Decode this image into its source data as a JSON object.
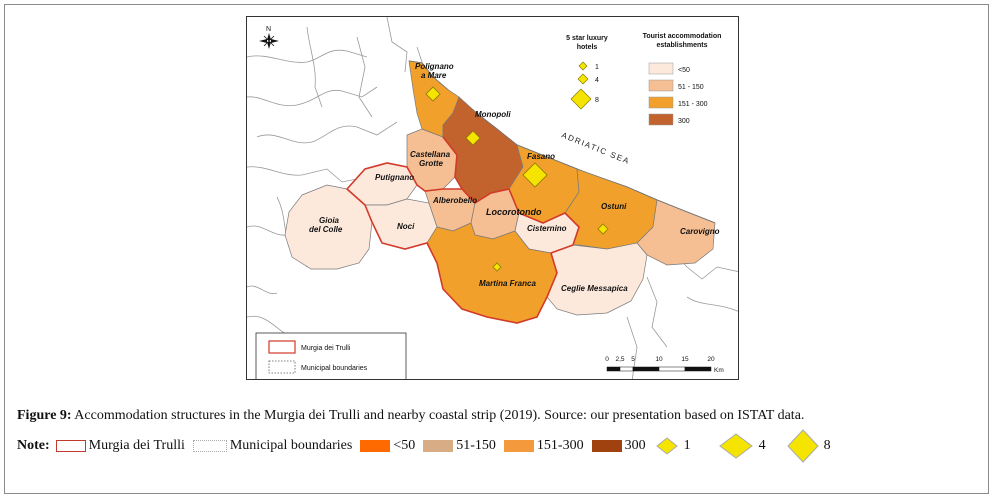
{
  "map": {
    "north_label": "N",
    "sea_label": "ADRIATIC SEA",
    "places": [
      {
        "name": "Polignano\na Mare"
      },
      {
        "name": "Monopoli"
      },
      {
        "name": "Castellana\nGrotte"
      },
      {
        "name": "Fasano"
      },
      {
        "name": "Putignano"
      },
      {
        "name": "Alberobello"
      },
      {
        "name": "Locorotondo"
      },
      {
        "name": "Ostuni"
      },
      {
        "name": "Gioia\ndel Colle"
      },
      {
        "name": "Noci"
      },
      {
        "name": "Cisternino"
      },
      {
        "name": "Carovigno"
      },
      {
        "name": "Martina Franca"
      },
      {
        "name": "Ceglie Messapica"
      }
    ],
    "hotels_legend": {
      "title": "5 star luxury\nhotels",
      "items": [
        {
          "label": "1"
        },
        {
          "label": "4"
        },
        {
          "label": "8"
        }
      ]
    },
    "accommodation_legend": {
      "title": "Tourist accommodation\nestablishments",
      "items": [
        {
          "label": "<50",
          "color": "#fde9dc"
        },
        {
          "label": "51 - 150",
          "color": "#f5be93"
        },
        {
          "label": "151 - 300",
          "color": "#f0a02b"
        },
        {
          "label": "300",
          "color": "#c2622d"
        }
      ]
    },
    "boundary_legend": {
      "murgia": "Murgia dei Trulli",
      "municipal": "Municipal boundaries"
    },
    "scale_bar": {
      "ticks": [
        "0",
        "2,5",
        "5",
        "10",
        "15",
        "20"
      ],
      "unit": "Km"
    },
    "colors": {
      "murgia_border": "#d23a2a",
      "hotel_marker": "#f5e400",
      "outline": "#7a7a7a"
    }
  },
  "caption": {
    "label": "Figure 9:",
    "text": " Accommodation structures in the Murgia dei Trulli and nearby coastal strip (2019). Source: our presentation based on ISTAT data."
  },
  "note": {
    "label": "Note:",
    "items": [
      {
        "text": "Murgia dei Trulli",
        "kind": "murgia"
      },
      {
        "text": "Municipal boundaries",
        "kind": "municipal"
      },
      {
        "text": "<50",
        "kind": "swatch",
        "color": "#ff6a00"
      },
      {
        "text": "51-150",
        "kind": "swatch",
        "color": "#d8ad86"
      },
      {
        "text": "151-300",
        "kind": "swatch",
        "color": "#f59a3c"
      },
      {
        "text": "300",
        "kind": "swatch",
        "color": "#a0420f"
      },
      {
        "text": "1",
        "kind": "diamond",
        "size": "small"
      },
      {
        "text": "4",
        "kind": "diamond",
        "size": "medium"
      },
      {
        "text": "8",
        "kind": "diamond",
        "size": "large"
      }
    ]
  }
}
